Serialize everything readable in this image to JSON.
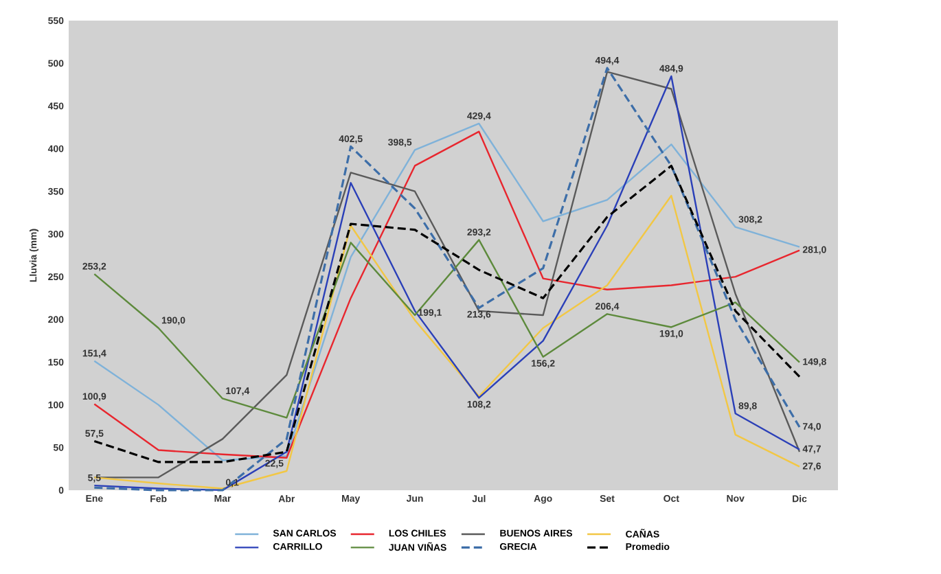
{
  "chart_data": {
    "type": "line",
    "ylabel": "Lluvia (mm)",
    "categories": [
      "Ene",
      "Feb",
      "Mar",
      "Abr",
      "May",
      "Jun",
      "Jul",
      "Ago",
      "Set",
      "Oct",
      "Nov",
      "Dic"
    ],
    "ylim": [
      0,
      550
    ],
    "yticks": [
      0,
      50,
      100,
      150,
      200,
      250,
      300,
      350,
      400,
      450,
      500,
      550
    ],
    "grid": false,
    "legend": "bottom",
    "marker": "none",
    "series": [
      {
        "name": "SAN CARLOS",
        "color": "#7fb2d9",
        "line_style": "solid",
        "values": [
          151.4,
          100,
          35,
          40,
          273,
          398.5,
          429.4,
          315,
          340,
          405,
          308.2,
          285
        ],
        "value_labels": [
          "151,4",
          null,
          null,
          null,
          null,
          "398,5",
          "429,4",
          null,
          null,
          null,
          "308,2",
          null
        ]
      },
      {
        "name": "LOS CHILES",
        "color": "#e8262e",
        "line_style": "solid",
        "values": [
          100.9,
          47,
          42,
          38,
          225,
          380,
          420,
          248,
          235,
          240,
          250,
          281.0
        ],
        "value_labels": [
          "100,9",
          null,
          null,
          null,
          null,
          null,
          null,
          null,
          null,
          null,
          null,
          "281,0"
        ]
      },
      {
        "name": "BUENOS AIRES",
        "color": "#5a5a5a",
        "line_style": "solid",
        "values": [
          15,
          15,
          60,
          135,
          372,
          350,
          210,
          205,
          490,
          470,
          230,
          45
        ]
      },
      {
        "name": "CAÑAS",
        "color": "#f2c744",
        "line_style": "solid",
        "values": [
          15,
          8,
          2,
          22.5,
          310,
          199.1,
          110,
          190,
          240,
          345,
          65,
          27.6
        ],
        "value_labels": [
          null,
          null,
          null,
          "22,5",
          null,
          "199,1",
          null,
          null,
          null,
          null,
          null,
          "27,6"
        ]
      },
      {
        "name": "CARRILLO",
        "color": "#2a3fb8",
        "line_style": "solid",
        "values": [
          5.5,
          2,
          0.1,
          45,
          360,
          210,
          108.2,
          175,
          310,
          484.9,
          89.8,
          47.7
        ],
        "value_labels": [
          "5,5",
          null,
          "0,1",
          null,
          null,
          null,
          "108,2",
          null,
          null,
          "484,9",
          "89,8",
          "47,7"
        ]
      },
      {
        "name": "JUAN VIÑAS",
        "color": "#5d8a3c",
        "line_style": "solid",
        "values": [
          253.2,
          190.0,
          107.4,
          85,
          290,
          205,
          293.2,
          156.2,
          206.4,
          191.0,
          220,
          149.8
        ],
        "value_labels": [
          "253,2",
          "190,0",
          "107,4",
          null,
          null,
          null,
          "293,2",
          "156,2",
          "206,4",
          "191,0",
          null,
          "149,8"
        ]
      },
      {
        "name": "GRECIA",
        "color": "#3d6ea8",
        "line_style": "dashed",
        "values": [
          3,
          0,
          0,
          60,
          402.5,
          330,
          213.6,
          260,
          494.4,
          380,
          200,
          74.0
        ],
        "value_labels": [
          null,
          null,
          null,
          null,
          "402,5",
          null,
          "213,6",
          null,
          "494,4",
          null,
          null,
          "74,0"
        ]
      },
      {
        "name": "Promedio",
        "color": "#000000",
        "line_style": "dashed",
        "values": [
          57.5,
          33,
          33,
          45,
          312,
          305,
          258,
          225,
          320,
          380,
          210,
          133
        ],
        "value_labels": [
          "57,5",
          null,
          null,
          null,
          null,
          null,
          null,
          null,
          null,
          null,
          null,
          null
        ]
      }
    ]
  }
}
